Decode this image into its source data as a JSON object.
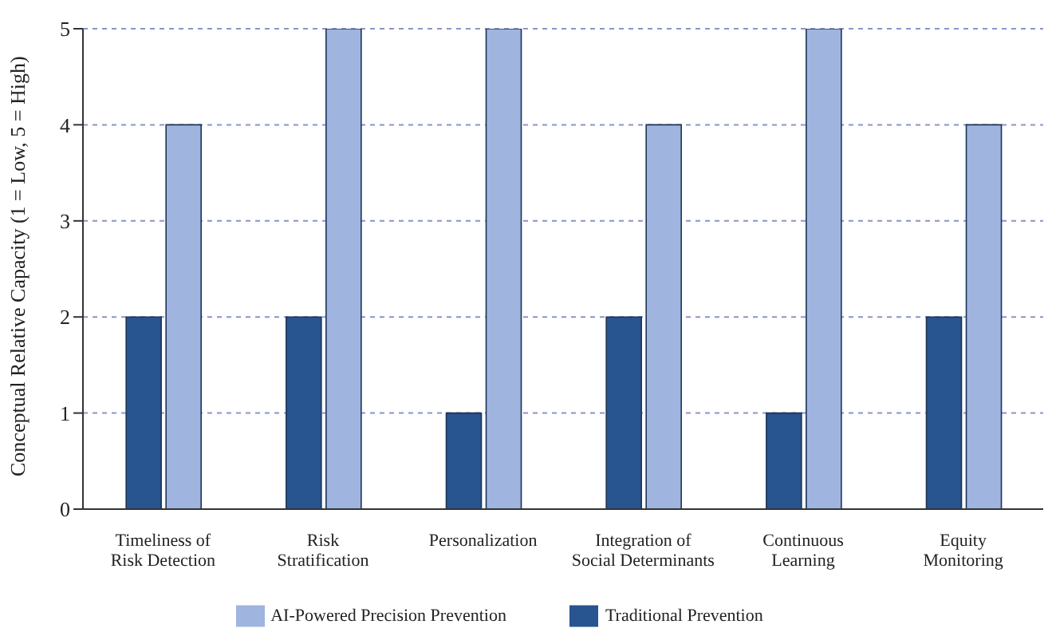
{
  "chart_data": {
    "type": "bar",
    "ylabel": "Conceptual Relative Capacity (1 = Low, 5 = High)",
    "categories": [
      "Timeliness of\nRisk Detection",
      "Risk\nStratification",
      "Personalization",
      "Integration of\nSocial Determinants",
      "Continuous\nLearning",
      "Equity\nMonitoring"
    ],
    "series": [
      {
        "name": "Traditional Prevention",
        "color": "#28548f",
        "values": [
          2,
          2,
          1,
          2,
          1,
          2
        ]
      },
      {
        "name": "AI-Powered Precision Prevention",
        "color": "#9fb5df",
        "values": [
          4,
          5,
          5,
          4,
          5,
          4
        ]
      }
    ],
    "ylim": [
      0,
      5
    ],
    "yticks": [
      0,
      1,
      2,
      3,
      4,
      5
    ],
    "grid": "y",
    "legend": "bottom"
  }
}
